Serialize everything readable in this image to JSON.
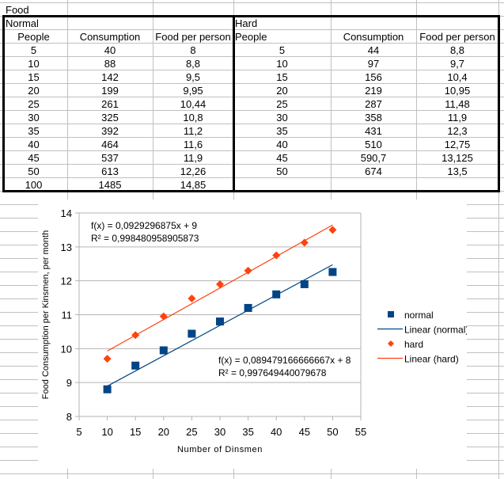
{
  "sheet": {
    "title": "Food",
    "normal": {
      "label": "Normal",
      "headers": [
        "People",
        "Consumption",
        "Food per person"
      ],
      "rows": [
        [
          "5",
          "40",
          "8"
        ],
        [
          "10",
          "88",
          "8,8"
        ],
        [
          "15",
          "142",
          "9,5"
        ],
        [
          "20",
          "199",
          "9,95"
        ],
        [
          "25",
          "261",
          "10,44"
        ],
        [
          "30",
          "325",
          "10,8"
        ],
        [
          "35",
          "392",
          "11,2"
        ],
        [
          "40",
          "464",
          "11,6"
        ],
        [
          "45",
          "537",
          "11,9"
        ],
        [
          "50",
          "613",
          "12,26"
        ],
        [
          "100",
          "1485",
          "14,85"
        ]
      ]
    },
    "hard": {
      "label": "Hard",
      "headers": [
        "People",
        "Consumption",
        "Food per person"
      ],
      "rows": [
        [
          "5",
          "44",
          "8,8"
        ],
        [
          "10",
          "97",
          "9,7"
        ],
        [
          "15",
          "156",
          "10,4"
        ],
        [
          "20",
          "219",
          "10,95"
        ],
        [
          "25",
          "287",
          "11,48"
        ],
        [
          "30",
          "358",
          "11,9"
        ],
        [
          "35",
          "431",
          "12,3"
        ],
        [
          "40",
          "510",
          "12,75"
        ],
        [
          "45",
          "590,7",
          "13,125"
        ],
        [
          "50",
          "674",
          "13,5"
        ]
      ]
    }
  },
  "chart_data": {
    "type": "scatter",
    "xlabel": "Number of Dinsmen",
    "ylabel": "Food Consumption per Kinsmen, per month",
    "xlim": [
      5,
      55
    ],
    "ylim": [
      8,
      14
    ],
    "xticks": [
      "5",
      "10",
      "15",
      "20",
      "25",
      "30",
      "35",
      "40",
      "45",
      "50",
      "55"
    ],
    "yticks": [
      "8",
      "9",
      "10",
      "11",
      "12",
      "13",
      "14"
    ],
    "grid": "horizontal",
    "legend_position": "right",
    "series": [
      {
        "name": "normal",
        "color": "#004586",
        "marker": "square",
        "x": [
          10,
          15,
          20,
          25,
          30,
          35,
          40,
          45,
          50
        ],
        "y": [
          8.8,
          9.5,
          9.95,
          10.44,
          10.8,
          11.2,
          11.6,
          11.9,
          12.26
        ],
        "trend": {
          "name": "Linear (normal)",
          "slope": 0.089479166666667,
          "intercept": 8,
          "equation": "f(x) = 0,089479166666667x + 8",
          "r2": "R² = 0,997649440079678"
        }
      },
      {
        "name": "hard",
        "color": "#ff420e",
        "marker": "diamond",
        "x": [
          10,
          15,
          20,
          25,
          30,
          35,
          40,
          45,
          50
        ],
        "y": [
          9.7,
          10.4,
          10.95,
          11.48,
          11.9,
          12.3,
          12.75,
          13.125,
          13.5
        ],
        "trend": {
          "name": "Linear (hard)",
          "slope": 0.0929296875,
          "intercept": 9,
          "equation": "f(x) = 0,0929296875x + 9",
          "r2": "R² = 0,998480958905873"
        }
      }
    ]
  }
}
